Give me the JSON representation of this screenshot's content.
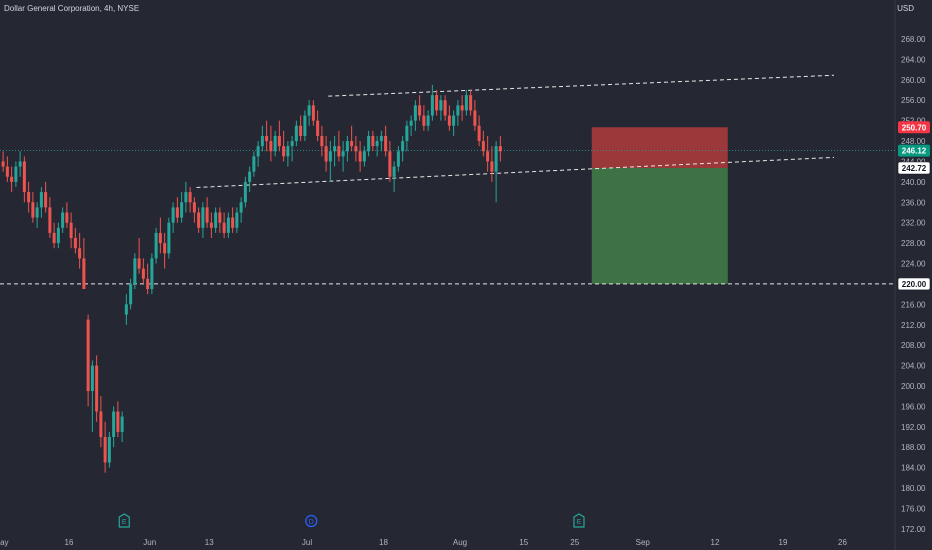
{
  "header": {
    "title": "Dollar General Corporation, 4h, NYSE",
    "currency": "USD"
  },
  "colors": {
    "background": "#252832",
    "up": "#26a69a",
    "down": "#ef5350",
    "text": "#b2b5be",
    "stop_zone": "#a83a3a",
    "target_zone": "#3d7646"
  },
  "chart_data": {
    "type": "candlestick",
    "y_ticks": [
      172,
      176,
      180,
      184,
      188,
      192,
      196,
      200,
      204,
      208,
      212,
      216,
      220,
      224,
      228,
      232,
      236,
      240,
      244,
      248,
      252,
      256,
      260,
      264,
      268
    ],
    "ylim": [
      170.6,
      272.9
    ],
    "x_ticks": [
      {
        "label": "May",
        "index": 0
      },
      {
        "label": "16",
        "index": 16
      },
      {
        "label": "Jun",
        "index": 35
      },
      {
        "label": "13",
        "index": 49
      },
      {
        "label": "Jul",
        "index": 72
      },
      {
        "label": "18",
        "index": 90
      },
      {
        "label": "Aug",
        "index": 108
      },
      {
        "label": "15",
        "index": 123
      },
      {
        "label": "25",
        "index": 135
      },
      {
        "label": "Sep",
        "index": 151
      },
      {
        "label": "12",
        "index": 168
      },
      {
        "label": "19",
        "index": 184
      },
      {
        "label": "26",
        "index": 198
      }
    ],
    "price_labels": [
      {
        "value": 250.7,
        "text": "250.70",
        "style": "red"
      },
      {
        "value": 246.12,
        "text": "246.12",
        "style": "green"
      },
      {
        "value": 242.72,
        "text": "242.72",
        "style": "white"
      },
      {
        "value": 220.0,
        "text": "220.00",
        "style": "white"
      }
    ],
    "last_price": 246.12,
    "horizontal_line": 220.0,
    "trendlines": [
      {
        "x1": 46,
        "y1": 238.9,
        "x2": 196,
        "y2": 244.8
      },
      {
        "x1": 77,
        "y1": 256.8,
        "x2": 196,
        "y2": 260.9
      }
    ],
    "position": {
      "x_start": 139,
      "x_end": 171,
      "entry": 242.72,
      "stop": 250.7,
      "target": 220.0
    },
    "events": [
      {
        "label": "E",
        "index": 29,
        "color": "#26a69a"
      },
      {
        "label": "D",
        "index": 73,
        "color": "#2962ff"
      },
      {
        "label": "E",
        "index": 136,
        "color": "#26a69a"
      }
    ],
    "candles": [
      [
        244,
        246,
        242,
        243
      ],
      [
        243,
        245,
        240,
        241
      ],
      [
        241,
        243,
        238,
        240
      ],
      [
        240,
        244,
        239,
        243
      ],
      [
        243,
        246,
        241,
        244
      ],
      [
        244,
        245,
        236,
        238
      ],
      [
        238,
        240,
        234,
        236
      ],
      [
        236,
        238,
        232,
        233
      ],
      [
        233,
        236,
        231,
        235
      ],
      [
        235,
        239,
        233,
        238
      ],
      [
        238,
        240,
        234,
        235
      ],
      [
        235,
        237,
        229,
        230
      ],
      [
        230,
        232,
        227,
        228
      ],
      [
        228,
        232,
        227,
        231
      ],
      [
        231,
        235,
        230,
        234
      ],
      [
        234,
        236,
        231,
        232
      ],
      [
        232,
        234,
        227,
        229
      ],
      [
        229,
        231,
        226,
        227
      ],
      [
        227,
        230,
        223,
        225
      ],
      [
        225,
        229,
        219,
        219
      ],
      [
        213,
        214,
        196,
        199
      ],
      [
        199,
        205,
        191,
        204
      ],
      [
        204,
        206,
        193,
        195
      ],
      [
        195,
        198,
        188,
        190
      ],
      [
        190,
        193,
        183,
        185
      ],
      [
        185,
        191,
        184,
        190
      ],
      [
        190,
        196,
        188,
        195
      ],
      [
        195,
        197,
        190,
        191
      ],
      [
        191,
        195,
        189,
        194
      ],
      [
        214,
        218,
        212,
        216
      ],
      [
        216,
        221,
        215,
        220
      ],
      [
        220,
        226,
        219,
        225
      ],
      [
        225,
        229,
        222,
        223
      ],
      [
        223,
        225,
        220,
        221
      ],
      [
        221,
        224,
        218,
        219
      ],
      [
        219,
        226,
        218,
        225
      ],
      [
        225,
        231,
        224,
        230
      ],
      [
        230,
        233,
        226,
        228
      ],
      [
        228,
        230,
        223,
        226
      ],
      [
        226,
        233,
        225,
        232
      ],
      [
        232,
        236,
        230,
        235
      ],
      [
        235,
        237,
        232,
        233
      ],
      [
        233,
        238,
        232,
        236
      ],
      [
        236,
        240,
        234,
        238
      ],
      [
        238,
        239,
        234,
        236
      ],
      [
        236,
        237,
        232,
        234
      ],
      [
        234,
        235,
        230,
        231
      ],
      [
        231,
        236,
        229,
        235
      ],
      [
        235,
        237,
        231,
        232
      ],
      [
        232,
        234,
        229,
        231
      ],
      [
        231,
        235,
        230,
        234
      ],
      [
        234,
        235,
        230,
        232
      ],
      [
        232,
        234,
        229,
        230
      ],
      [
        230,
        234,
        229,
        233
      ],
      [
        233,
        235,
        230,
        231
      ],
      [
        231,
        235,
        230,
        234
      ],
      [
        234,
        237,
        232,
        236
      ],
      [
        236,
        241,
        235,
        240
      ],
      [
        240,
        243,
        238,
        242
      ],
      [
        242,
        246,
        241,
        245
      ],
      [
        245,
        248,
        243,
        247
      ],
      [
        247,
        251,
        246,
        249
      ],
      [
        249,
        252,
        246,
        248
      ],
      [
        248,
        251,
        244,
        246
      ],
      [
        246,
        250,
        245,
        249
      ],
      [
        249,
        252,
        246,
        247
      ],
      [
        247,
        250,
        244,
        245
      ],
      [
        245,
        248,
        243,
        247
      ],
      [
        247,
        249,
        244,
        248
      ],
      [
        248,
        252,
        247,
        251
      ],
      [
        251,
        253,
        248,
        249
      ],
      [
        249,
        254,
        248,
        253
      ],
      [
        253,
        256,
        251,
        255
      ],
      [
        255,
        256,
        251,
        252
      ],
      [
        252,
        254,
        248,
        249
      ],
      [
        249,
        251,
        245,
        247
      ],
      [
        247,
        249,
        242,
        244
      ],
      [
        244,
        248,
        240,
        246
      ],
      [
        246,
        249,
        243,
        247
      ],
      [
        247,
        250,
        244,
        245
      ],
      [
        245,
        248,
        242,
        246
      ],
      [
        246,
        249,
        244,
        248
      ],
      [
        248,
        251,
        246,
        247
      ],
      [
        247,
        249,
        244,
        246
      ],
      [
        246,
        248,
        242,
        244
      ],
      [
        244,
        247,
        243,
        246
      ],
      [
        246,
        250,
        245,
        249
      ],
      [
        249,
        250,
        246,
        247
      ],
      [
        247,
        249,
        245,
        248
      ],
      [
        248,
        250,
        246,
        249
      ],
      [
        249,
        251,
        245,
        246
      ],
      [
        246,
        248,
        240,
        241
      ],
      [
        241,
        244,
        238,
        243
      ],
      [
        243,
        247,
        242,
        246
      ],
      [
        246,
        249,
        244,
        248
      ],
      [
        248,
        252,
        246,
        251
      ],
      [
        251,
        253,
        249,
        252
      ],
      [
        252,
        256,
        250,
        255
      ],
      [
        255,
        257,
        252,
        253
      ],
      [
        253,
        255,
        250,
        251
      ],
      [
        251,
        254,
        250,
        253
      ],
      [
        253,
        259,
        252,
        257
      ],
      [
        257,
        258,
        253,
        254
      ],
      [
        254,
        257,
        252,
        256
      ],
      [
        256,
        257,
        252,
        253
      ],
      [
        253,
        255,
        250,
        251
      ],
      [
        251,
        254,
        249,
        253
      ],
      [
        253,
        256,
        251,
        255
      ],
      [
        255,
        257,
        252,
        254
      ],
      [
        254,
        258,
        253,
        257
      ],
      [
        257,
        258,
        253,
        254
      ],
      [
        254,
        256,
        250,
        251
      ],
      [
        251,
        253,
        247,
        248
      ],
      [
        248,
        250,
        245,
        246
      ],
      [
        246,
        249,
        242,
        244
      ],
      [
        244,
        247,
        240,
        242
      ],
      [
        242,
        248,
        236,
        247
      ],
      [
        247,
        249,
        244,
        246
      ]
    ]
  }
}
